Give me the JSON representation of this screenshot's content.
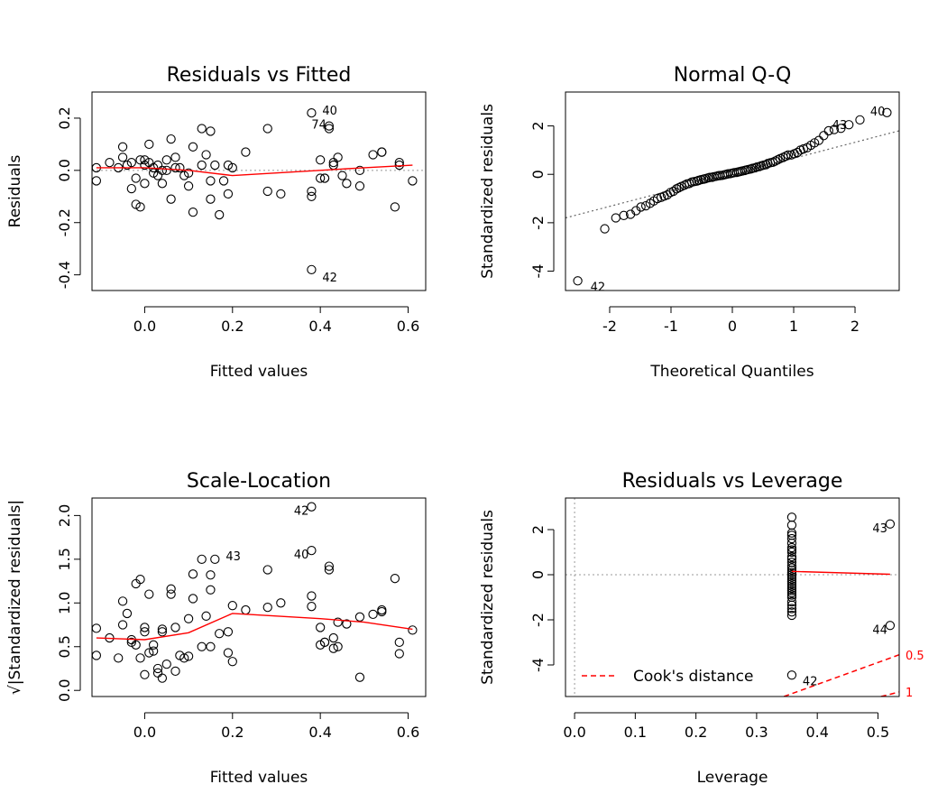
{
  "chart_data": [
    {
      "type": "scatter",
      "title": "Residuals vs Fitted",
      "xlabel": "Fitted values",
      "ylabel": "Residuals",
      "xlim": [
        -0.12,
        0.64
      ],
      "ylim": [
        -0.46,
        0.3
      ],
      "xticks": [
        0.0,
        0.2,
        0.4,
        0.6
      ],
      "yticks": [
        -0.4,
        -0.2,
        0.0,
        0.2
      ],
      "xtick_labels": [
        "0.0",
        "0.2",
        "0.4",
        "0.6"
      ],
      "ytick_labels": [
        "-0.4",
        "-0.2",
        "0.0",
        "0.2"
      ],
      "ref_line_y": 0,
      "points": [
        [
          -0.11,
          0.01
        ],
        [
          -0.11,
          -0.04
        ],
        [
          -0.08,
          0.03
        ],
        [
          -0.06,
          0.01
        ],
        [
          -0.05,
          0.09
        ],
        [
          -0.05,
          0.05
        ],
        [
          -0.04,
          0.02
        ],
        [
          -0.03,
          0.03
        ],
        [
          -0.03,
          -0.07
        ],
        [
          -0.02,
          -0.13
        ],
        [
          -0.02,
          -0.03
        ],
        [
          -0.01,
          -0.14
        ],
        [
          -0.01,
          0.04
        ],
        [
          0.0,
          0.02
        ],
        [
          0.0,
          -0.05
        ],
        [
          0.0,
          0.04
        ],
        [
          0.01,
          0.1
        ],
        [
          0.01,
          0.03
        ],
        [
          0.02,
          -0.01
        ],
        [
          0.02,
          0.01
        ],
        [
          0.03,
          0.02
        ],
        [
          0.03,
          -0.02
        ],
        [
          0.04,
          0.0
        ],
        [
          0.04,
          -0.05
        ],
        [
          0.05,
          0.0
        ],
        [
          0.05,
          0.04
        ],
        [
          0.06,
          0.12
        ],
        [
          0.06,
          -0.11
        ],
        [
          0.07,
          0.01
        ],
        [
          0.07,
          0.05
        ],
        [
          0.08,
          0.01
        ],
        [
          0.09,
          -0.02
        ],
        [
          0.1,
          -0.06
        ],
        [
          0.1,
          -0.01
        ],
        [
          0.11,
          0.09
        ],
        [
          0.11,
          -0.16
        ],
        [
          0.13,
          0.02
        ],
        [
          0.13,
          0.16
        ],
        [
          0.14,
          0.06
        ],
        [
          0.15,
          0.15
        ],
        [
          0.15,
          -0.04
        ],
        [
          0.15,
          -0.11
        ],
        [
          0.16,
          0.02
        ],
        [
          0.17,
          -0.17
        ],
        [
          0.18,
          -0.04
        ],
        [
          0.19,
          0.02
        ],
        [
          0.19,
          -0.09
        ],
        [
          0.2,
          0.01
        ],
        [
          0.23,
          0.07
        ],
        [
          0.28,
          0.16
        ],
        [
          0.28,
          -0.08
        ],
        [
          0.31,
          -0.09
        ],
        [
          0.38,
          0.22
        ],
        [
          0.38,
          -0.08
        ],
        [
          0.38,
          -0.1
        ],
        [
          0.38,
          -0.38
        ],
        [
          0.4,
          0.04
        ],
        [
          0.4,
          -0.03
        ],
        [
          0.41,
          -0.03
        ],
        [
          0.41,
          -0.03
        ],
        [
          0.42,
          0.17
        ],
        [
          0.42,
          0.16
        ],
        [
          0.43,
          0.03
        ],
        [
          0.43,
          0.02
        ],
        [
          0.44,
          0.05
        ],
        [
          0.45,
          -0.02
        ],
        [
          0.46,
          -0.05
        ],
        [
          0.49,
          0.0
        ],
        [
          0.49,
          -0.06
        ],
        [
          0.52,
          0.06
        ],
        [
          0.54,
          0.07
        ],
        [
          0.54,
          0.07
        ],
        [
          0.57,
          -0.14
        ],
        [
          0.58,
          0.02
        ],
        [
          0.58,
          0.03
        ],
        [
          0.61,
          -0.04
        ]
      ],
      "smooth": [
        [
          -0.11,
          0.01
        ],
        [
          0.0,
          0.01
        ],
        [
          0.1,
          0.0
        ],
        [
          0.2,
          -0.02
        ],
        [
          0.3,
          -0.01
        ],
        [
          0.4,
          0.0
        ],
        [
          0.5,
          0.01
        ],
        [
          0.61,
          0.02
        ]
      ],
      "point_labels": [
        {
          "text": "40",
          "x": 0.38,
          "y": 0.22
        },
        {
          "text": "74",
          "x": 0.42,
          "y": 0.17
        },
        {
          "text": "42",
          "x": 0.38,
          "y": -0.38
        }
      ]
    },
    {
      "type": "scatter",
      "title": "Normal Q-Q",
      "xlabel": "Theoretical Quantiles",
      "ylabel": "Standardized residuals",
      "xlim": [
        -2.72,
        2.72
      ],
      "ylim": [
        -4.8,
        3.4
      ],
      "xticks": [
        -2,
        -1,
        0,
        1,
        2
      ],
      "yticks": [
        -4,
        -2,
        0,
        2
      ],
      "xtick_labels": [
        "-2",
        "-1",
        "0",
        "1",
        "2"
      ],
      "ytick_labels": [
        "-4",
        "-2",
        "0",
        "2"
      ],
      "ref_line": [
        [
          -2.72,
          -1.8
        ],
        [
          2.72,
          1.8
        ]
      ],
      "points": [
        [
          -2.52,
          -4.4
        ],
        [
          -2.08,
          -2.25
        ],
        [
          -1.9,
          -1.8
        ],
        [
          -1.77,
          -1.7
        ],
        [
          -1.66,
          -1.65
        ],
        [
          -1.57,
          -1.5
        ],
        [
          -1.49,
          -1.35
        ],
        [
          -1.41,
          -1.3
        ],
        [
          -1.34,
          -1.2
        ],
        [
          -1.28,
          -1.1
        ],
        [
          -1.22,
          -1.0
        ],
        [
          -1.16,
          -0.95
        ],
        [
          -1.11,
          -0.9
        ],
        [
          -1.06,
          -0.85
        ],
        [
          -1.01,
          -0.75
        ],
        [
          -0.96,
          -0.7
        ],
        [
          -0.91,
          -0.6
        ],
        [
          -0.87,
          -0.55
        ],
        [
          -0.83,
          -0.5
        ],
        [
          -0.78,
          -0.45
        ],
        [
          -0.74,
          -0.4
        ],
        [
          -0.7,
          -0.38
        ],
        [
          -0.66,
          -0.32
        ],
        [
          -0.62,
          -0.3
        ],
        [
          -0.58,
          -0.28
        ],
        [
          -0.55,
          -0.25
        ],
        [
          -0.51,
          -0.22
        ],
        [
          -0.47,
          -0.2
        ],
        [
          -0.44,
          -0.18
        ],
        [
          -0.4,
          -0.15
        ],
        [
          -0.37,
          -0.13
        ],
        [
          -0.33,
          -0.12
        ],
        [
          -0.3,
          -0.1
        ],
        [
          -0.26,
          -0.08
        ],
        [
          -0.23,
          -0.06
        ],
        [
          -0.2,
          -0.05
        ],
        [
          -0.16,
          -0.04
        ],
        [
          -0.13,
          -0.02
        ],
        [
          -0.1,
          0.0
        ],
        [
          -0.07,
          0.02
        ],
        [
          -0.03,
          0.03
        ],
        [
          0.0,
          0.05
        ],
        [
          0.03,
          0.07
        ],
        [
          0.07,
          0.08
        ],
        [
          0.1,
          0.1
        ],
        [
          0.13,
          0.12
        ],
        [
          0.16,
          0.14
        ],
        [
          0.2,
          0.16
        ],
        [
          0.23,
          0.18
        ],
        [
          0.26,
          0.2
        ],
        [
          0.3,
          0.22
        ],
        [
          0.33,
          0.25
        ],
        [
          0.37,
          0.27
        ],
        [
          0.4,
          0.3
        ],
        [
          0.44,
          0.32
        ],
        [
          0.47,
          0.35
        ],
        [
          0.51,
          0.38
        ],
        [
          0.55,
          0.4
        ],
        [
          0.58,
          0.45
        ],
        [
          0.62,
          0.48
        ],
        [
          0.66,
          0.5
        ],
        [
          0.7,
          0.55
        ],
        [
          0.74,
          0.6
        ],
        [
          0.78,
          0.65
        ],
        [
          0.83,
          0.7
        ],
        [
          0.87,
          0.75
        ],
        [
          0.91,
          0.8
        ],
        [
          0.96,
          0.8
        ],
        [
          1.01,
          0.85
        ],
        [
          1.06,
          0.9
        ],
        [
          1.11,
          1.0
        ],
        [
          1.16,
          1.05
        ],
        [
          1.22,
          1.1
        ],
        [
          1.28,
          1.2
        ],
        [
          1.34,
          1.3
        ],
        [
          1.41,
          1.4
        ],
        [
          1.49,
          1.6
        ],
        [
          1.57,
          1.8
        ],
        [
          1.66,
          1.85
        ],
        [
          1.77,
          1.9
        ],
        [
          1.9,
          2.05
        ],
        [
          2.08,
          2.25
        ],
        [
          2.52,
          2.55
        ]
      ],
      "point_labels": [
        {
          "text": "42",
          "x": -2.52,
          "y": -4.4
        },
        {
          "text": "43",
          "x": 1.9,
          "y": 2.05
        },
        {
          "text": "40",
          "x": 2.52,
          "y": 2.55
        }
      ]
    },
    {
      "type": "scatter",
      "title": "Scale-Location",
      "xlabel": "Fitted values",
      "ylabel": "√|Standardized residuals|",
      "xlim": [
        -0.12,
        0.64
      ],
      "ylim": [
        -0.07,
        2.2
      ],
      "xticks": [
        0.0,
        0.2,
        0.4,
        0.6
      ],
      "yticks": [
        0.0,
        0.5,
        1.0,
        1.5,
        2.0
      ],
      "xtick_labels": [
        "0.0",
        "0.2",
        "0.4",
        "0.6"
      ],
      "ytick_labels": [
        "0.0",
        "0.5",
        "1.0",
        "1.5",
        "2.0"
      ],
      "points": [
        [
          -0.11,
          0.71
        ],
        [
          -0.11,
          0.4
        ],
        [
          -0.08,
          0.6
        ],
        [
          -0.06,
          0.37
        ],
        [
          -0.05,
          1.02
        ],
        [
          -0.05,
          0.75
        ],
        [
          -0.04,
          0.88
        ],
        [
          -0.03,
          0.58
        ],
        [
          -0.03,
          0.55
        ],
        [
          -0.02,
          1.22
        ],
        [
          -0.02,
          0.52
        ],
        [
          -0.01,
          1.27
        ],
        [
          -0.01,
          0.37
        ],
        [
          0.0,
          0.72
        ],
        [
          0.0,
          0.67
        ],
        [
          0.0,
          0.18
        ],
        [
          0.01,
          1.1
        ],
        [
          0.01,
          0.43
        ],
        [
          0.02,
          0.52
        ],
        [
          0.02,
          0.45
        ],
        [
          0.03,
          0.2
        ],
        [
          0.03,
          0.25
        ],
        [
          0.04,
          0.14
        ],
        [
          0.04,
          0.67
        ],
        [
          0.04,
          0.7
        ],
        [
          0.05,
          0.3
        ],
        [
          0.06,
          1.16
        ],
        [
          0.06,
          1.1
        ],
        [
          0.07,
          0.22
        ],
        [
          0.07,
          0.72
        ],
        [
          0.08,
          0.4
        ],
        [
          0.09,
          0.37
        ],
        [
          0.1,
          0.82
        ],
        [
          0.1,
          0.39
        ],
        [
          0.11,
          1.05
        ],
        [
          0.11,
          1.33
        ],
        [
          0.13,
          0.5
        ],
        [
          0.13,
          1.5
        ],
        [
          0.14,
          0.85
        ],
        [
          0.15,
          1.32
        ],
        [
          0.15,
          1.15
        ],
        [
          0.15,
          0.5
        ],
        [
          0.16,
          1.5
        ],
        [
          0.17,
          0.65
        ],
        [
          0.19,
          0.67
        ],
        [
          0.19,
          0.43
        ],
        [
          0.2,
          0.33
        ],
        [
          0.2,
          0.97
        ],
        [
          0.23,
          0.92
        ],
        [
          0.28,
          1.38
        ],
        [
          0.28,
          0.95
        ],
        [
          0.31,
          1.0
        ],
        [
          0.38,
          1.08
        ],
        [
          0.38,
          0.96
        ],
        [
          0.38,
          2.1
        ],
        [
          0.38,
          1.6
        ],
        [
          0.4,
          0.72
        ],
        [
          0.4,
          0.52
        ],
        [
          0.41,
          0.55
        ],
        [
          0.41,
          0.55
        ],
        [
          0.42,
          1.42
        ],
        [
          0.42,
          1.38
        ],
        [
          0.43,
          0.48
        ],
        [
          0.43,
          0.6
        ],
        [
          0.44,
          0.78
        ],
        [
          0.44,
          0.5
        ],
        [
          0.46,
          0.76
        ],
        [
          0.49,
          0.15
        ],
        [
          0.49,
          0.84
        ],
        [
          0.52,
          0.87
        ],
        [
          0.54,
          0.9
        ],
        [
          0.54,
          0.92
        ],
        [
          0.57,
          1.28
        ],
        [
          0.58,
          0.55
        ],
        [
          0.58,
          0.42
        ],
        [
          0.61,
          0.69
        ]
      ],
      "smooth": [
        [
          -0.11,
          0.6
        ],
        [
          0.0,
          0.58
        ],
        [
          0.1,
          0.66
        ],
        [
          0.2,
          0.88
        ],
        [
          0.3,
          0.85
        ],
        [
          0.4,
          0.82
        ],
        [
          0.5,
          0.78
        ],
        [
          0.61,
          0.7
        ]
      ],
      "point_labels": [
        {
          "text": "42",
          "x": 0.38,
          "y": 2.1
        },
        {
          "text": "40",
          "x": 0.38,
          "y": 1.6
        },
        {
          "text": "43",
          "x": 0.16,
          "y": 1.5
        }
      ]
    },
    {
      "type": "scatter",
      "title": "Residuals vs Leverage",
      "xlabel": "Leverage",
      "ylabel": "Standardized residuals",
      "xlim": [
        -0.015,
        0.535
      ],
      "ylim": [
        -5.4,
        3.4
      ],
      "xticks": [
        0.0,
        0.1,
        0.2,
        0.3,
        0.4,
        0.5
      ],
      "yticks": [
        -4,
        -2,
        0,
        2
      ],
      "xtick_labels": [
        "0.0",
        "0.1",
        "0.2",
        "0.3",
        "0.4",
        "0.5"
      ],
      "ytick_labels": [
        "-4",
        "-2",
        "0",
        "2"
      ],
      "ref_line_x": 0,
      "ref_line_y": 0,
      "points": [
        [
          0.358,
          2.55
        ],
        [
          0.358,
          2.2
        ],
        [
          0.358,
          1.85
        ],
        [
          0.358,
          1.75
        ],
        [
          0.358,
          1.6
        ],
        [
          0.358,
          1.4
        ],
        [
          0.358,
          1.2
        ],
        [
          0.358,
          1.1
        ],
        [
          0.358,
          1.0
        ],
        [
          0.358,
          0.8
        ],
        [
          0.358,
          0.7
        ],
        [
          0.358,
          0.55
        ],
        [
          0.358,
          0.4
        ],
        [
          0.358,
          0.3
        ],
        [
          0.358,
          0.2
        ],
        [
          0.358,
          0.1
        ],
        [
          0.358,
          0.0
        ],
        [
          0.358,
          -0.1
        ],
        [
          0.358,
          -0.2
        ],
        [
          0.358,
          -0.3
        ],
        [
          0.358,
          -0.4
        ],
        [
          0.358,
          -0.5
        ],
        [
          0.358,
          -0.6
        ],
        [
          0.358,
          -0.7
        ],
        [
          0.358,
          -0.8
        ],
        [
          0.358,
          -0.9
        ],
        [
          0.358,
          -1.0
        ],
        [
          0.358,
          -1.2
        ],
        [
          0.358,
          -1.35
        ],
        [
          0.358,
          -1.5
        ],
        [
          0.358,
          -1.65
        ],
        [
          0.358,
          -1.8
        ],
        [
          0.358,
          -4.45
        ],
        [
          0.52,
          2.25
        ],
        [
          0.52,
          -2.25
        ]
      ],
      "smooth": [
        [
          0.358,
          0.15
        ],
        [
          0.52,
          0.02
        ]
      ],
      "cook_contours": [
        {
          "label": "0.5",
          "line": [
            [
              0.345,
              -5.4
            ],
            [
              0.535,
              -3.55
            ]
          ]
        },
        {
          "label": "1",
          "line": [
            [
              0.505,
              -5.4
            ],
            [
              0.535,
              -5.2
            ]
          ]
        }
      ],
      "point_labels": [
        {
          "text": "43",
          "x": 0.52,
          "y": 2.25
        },
        {
          "text": "44",
          "x": 0.52,
          "y": -2.25
        },
        {
          "text": "42",
          "x": 0.358,
          "y": -4.45
        }
      ],
      "legend": {
        "position": "bottom-left",
        "label": "Cook's distance"
      }
    }
  ],
  "colors": {
    "points": "#000000",
    "smooth": "#ff0000",
    "reference": "#999999",
    "cook": "#ff0000"
  }
}
